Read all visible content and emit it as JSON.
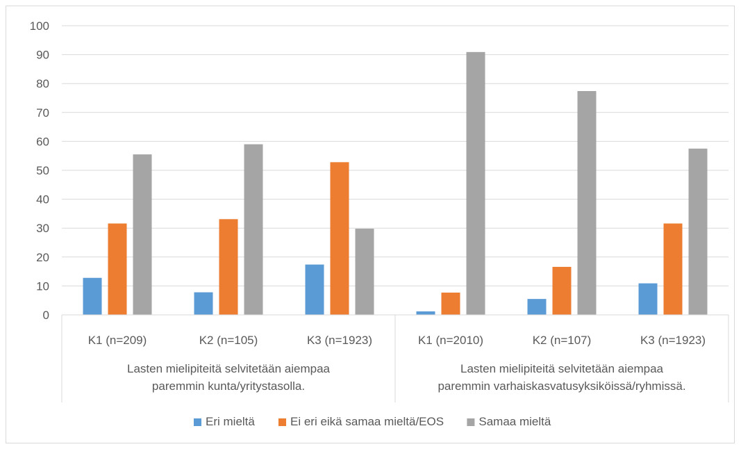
{
  "chart_data": {
    "type": "bar",
    "title": "",
    "xlabel": "",
    "ylabel": "",
    "ylim": [
      0,
      100
    ],
    "yticks": [
      0,
      10,
      20,
      30,
      40,
      50,
      60,
      70,
      80,
      90,
      100
    ],
    "grid": true,
    "legend_position": "bottom",
    "categories": [
      "K1 (n=209)",
      "K2 (n=105)",
      "K3 (n=1923)",
      "K1 (n=2010)",
      "K2 (n=107)",
      "K3 (n=1923)"
    ],
    "groups": [
      {
        "label_lines": [
          "Lasten mielipiteitä selvitetään aiempaa",
          "paremmin kunta/yritystasolla."
        ],
        "categories": [
          0,
          1,
          2
        ]
      },
      {
        "label_lines": [
          "Lasten mielipiteitä selvitetään aiempaa",
          "paremmin varhaiskasvatusyksiköissä/ryhmissä."
        ],
        "categories": [
          3,
          4,
          5
        ]
      }
    ],
    "series": [
      {
        "name": "Eri mieltä",
        "color": "#5b9bd5",
        "values": [
          12.8,
          7.8,
          17.4,
          1.2,
          5.5,
          10.9
        ]
      },
      {
        "name": "Ei eri eikä samaa mieltä/EOS",
        "color": "#ed7d31",
        "values": [
          31.6,
          33.1,
          52.8,
          7.7,
          16.6,
          31.6
        ]
      },
      {
        "name": "Samaa mieltä",
        "color": "#a5a5a5",
        "values": [
          55.5,
          59.0,
          29.8,
          90.9,
          77.4,
          57.5
        ]
      }
    ]
  }
}
